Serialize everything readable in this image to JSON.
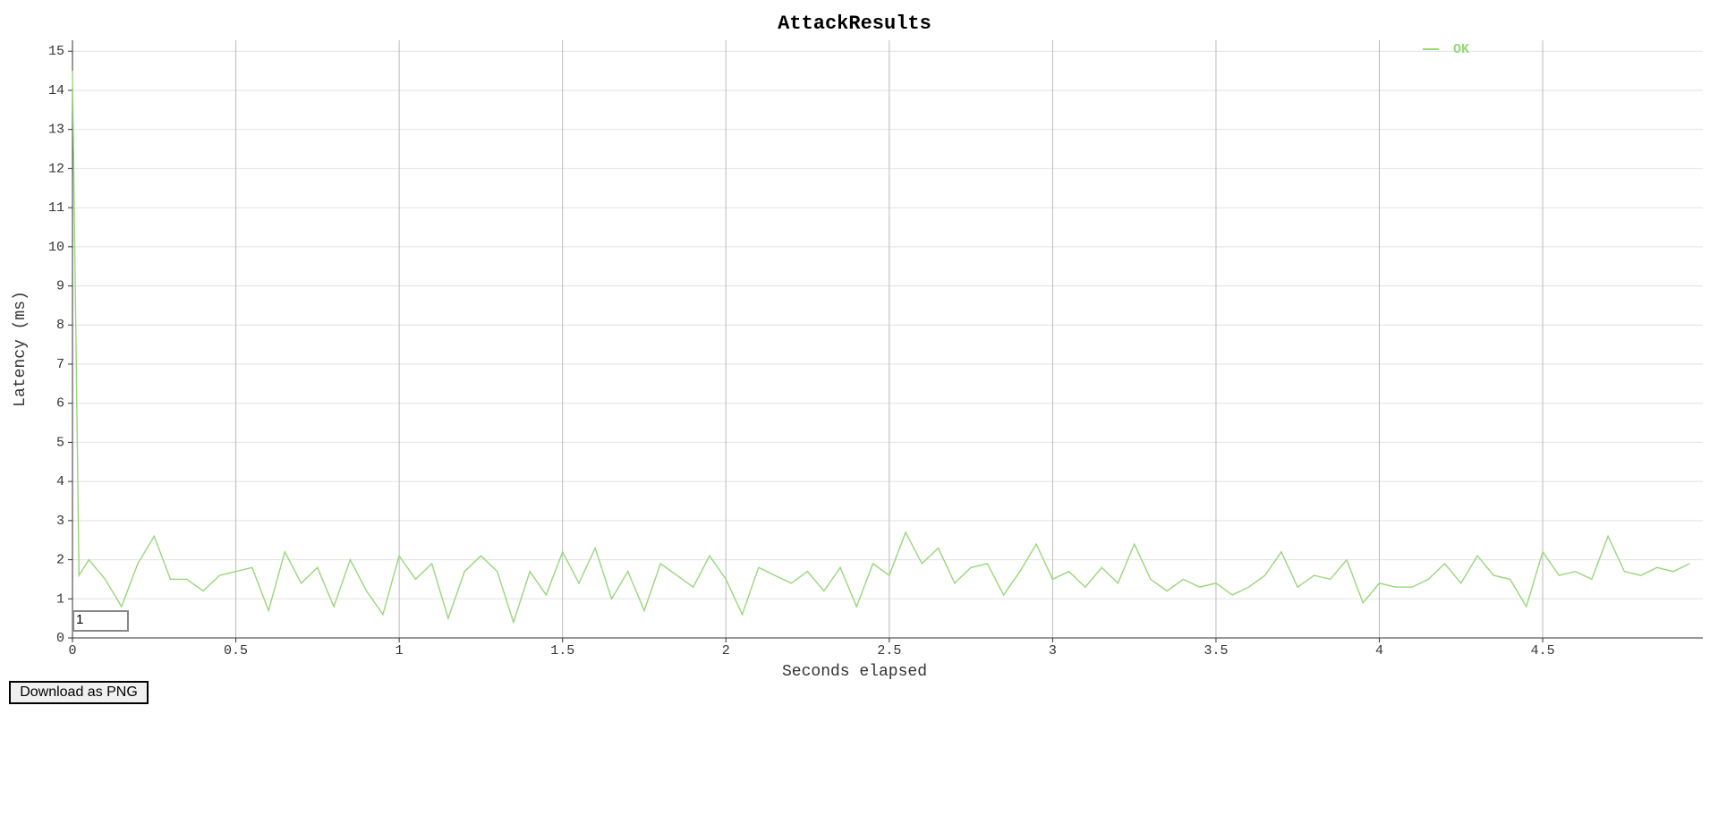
{
  "chart_data": {
    "type": "line",
    "title": "AttackResults",
    "x_label": "Seconds elapsed",
    "y_label": "Latency (ms)",
    "x": [
      0,
      0.02,
      0.05,
      0.1,
      0.15,
      0.2,
      0.25,
      0.3,
      0.35,
      0.4,
      0.45,
      0.5,
      0.55,
      0.6,
      0.65,
      0.7,
      0.75,
      0.8,
      0.85,
      0.9,
      0.95,
      1,
      1.05,
      1.1,
      1.15,
      1.2,
      1.25,
      1.3,
      1.35,
      1.4,
      1.45,
      1.5,
      1.55,
      1.6,
      1.65,
      1.7,
      1.75,
      1.8,
      1.85,
      1.9,
      1.95,
      2,
      2.05,
      2.1,
      2.15,
      2.2,
      2.25,
      2.3,
      2.35,
      2.4,
      2.45,
      2.5,
      2.55,
      2.6,
      2.65,
      2.7,
      2.75,
      2.8,
      2.85,
      2.9,
      2.95,
      3,
      3.05,
      3.1,
      3.15,
      3.2,
      3.25,
      3.3,
      3.35,
      3.4,
      3.45,
      3.5,
      3.55,
      3.6,
      3.65,
      3.7,
      3.75,
      3.8,
      3.85,
      3.9,
      3.95,
      4,
      4.05,
      4.1,
      4.15,
      4.2,
      4.25,
      4.3,
      4.35,
      4.4,
      4.45,
      4.5,
      4.55,
      4.6,
      4.65,
      4.7,
      4.75,
      4.8,
      4.85,
      4.9,
      4.95
    ],
    "series": [
      {
        "name": "OK",
        "color": "#98d77a",
        "values": [
          14.5,
          1.6,
          2.0,
          1.5,
          0.8,
          1.9,
          2.6,
          1.5,
          1.5,
          1.2,
          1.6,
          1.7,
          1.8,
          0.7,
          2.2,
          1.4,
          1.8,
          0.8,
          2.0,
          1.2,
          0.6,
          2.1,
          1.5,
          1.9,
          0.5,
          1.7,
          2.1,
          1.7,
          0.4,
          1.7,
          1.1,
          2.2,
          1.4,
          2.3,
          1.0,
          1.7,
          0.7,
          1.9,
          1.6,
          1.3,
          2.1,
          1.5,
          0.6,
          1.8,
          1.6,
          1.4,
          1.7,
          1.2,
          1.8,
          0.8,
          1.9,
          1.6,
          2.7,
          1.9,
          2.3,
          1.4,
          1.8,
          1.9,
          1.1,
          1.7,
          2.4,
          1.5,
          1.7,
          1.3,
          1.8,
          1.4,
          2.4,
          1.5,
          1.2,
          1.5,
          1.3,
          1.4,
          1.1,
          1.3,
          1.6,
          2.2,
          1.3,
          1.6,
          1.5,
          2.0,
          0.9,
          1.4,
          1.3,
          1.3,
          1.5,
          1.9,
          1.4,
          2.1,
          1.6,
          1.5,
          0.8,
          2.2,
          1.6,
          1.7,
          1.5,
          2.6,
          1.7,
          1.6,
          1.8,
          1.7,
          1.9
        ]
      }
    ],
    "xlim": [
      0,
      4.99
    ],
    "ylim": [
      0,
      15.28
    ],
    "xticks": [
      0,
      0.5,
      1,
      1.5,
      2,
      2.5,
      3,
      3.5,
      4,
      4.5
    ],
    "yticks": [
      0,
      1,
      2,
      3,
      4,
      5,
      6,
      7,
      8,
      9,
      10,
      11,
      12,
      13,
      14,
      15
    ],
    "grid": true,
    "legend": "top-right"
  },
  "controls": {
    "roll_period": "1",
    "download_button": "Download as PNG"
  }
}
